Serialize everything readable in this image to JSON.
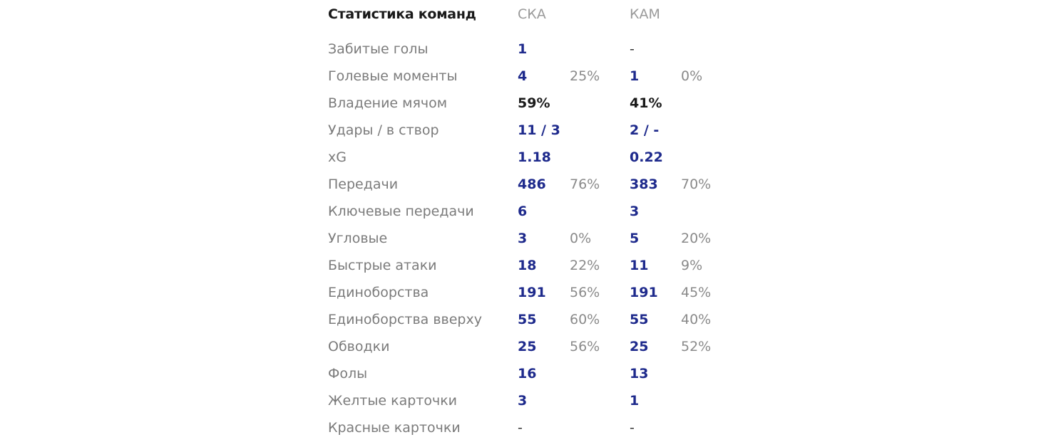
{
  "header": {
    "title": "Статистика команд",
    "team1": "СКА",
    "team2": "КАМ"
  },
  "rows": [
    {
      "label": "Забитые голы",
      "v1": "1",
      "p1": "",
      "v2": "-",
      "p2": ""
    },
    {
      "label": "Голевые моменты",
      "v1": "4",
      "p1": "25%",
      "v2": "1",
      "p2": "0%"
    },
    {
      "label": "Владение мячом",
      "v1": "59%",
      "p1": "",
      "v2": "41%",
      "p2": ""
    },
    {
      "label": "Удары / в створ",
      "v1": "11 / 3",
      "p1": "",
      "v2": "2 / -",
      "p2": ""
    },
    {
      "label": "xG",
      "v1": "1.18",
      "p1": "",
      "v2": "0.22",
      "p2": ""
    },
    {
      "label": "Передачи",
      "v1": "486",
      "p1": "76%",
      "v2": "383",
      "p2": "70%"
    },
    {
      "label": "Ключевые передачи",
      "v1": "6",
      "p1": "",
      "v2": "3",
      "p2": ""
    },
    {
      "label": "Угловые",
      "v1": "3",
      "p1": "0%",
      "v2": "5",
      "p2": "20%"
    },
    {
      "label": "Быстрые атаки",
      "v1": "18",
      "p1": "22%",
      "v2": "11",
      "p2": "9%"
    },
    {
      "label": "Единоборства",
      "v1": "191",
      "p1": "56%",
      "v2": "191",
      "p2": "45%"
    },
    {
      "label": "Единоборства вверху",
      "v1": "55",
      "p1": "60%",
      "v2": "55",
      "p2": "40%"
    },
    {
      "label": "Обводки",
      "v1": "25",
      "p1": "56%",
      "v2": "25",
      "p2": "52%"
    },
    {
      "label": "Фолы",
      "v1": "16",
      "p1": "",
      "v2": "13",
      "p2": ""
    },
    {
      "label": "Желтые карточки",
      "v1": "3",
      "p1": "",
      "v2": "1",
      "p2": ""
    },
    {
      "label": "Красные карточки",
      "v1": "-",
      "p1": "",
      "v2": "-",
      "p2": ""
    }
  ],
  "colors": {
    "value": "#1e2a8c",
    "label": "#7b7b7b",
    "percent": "#8a8a8a",
    "heading": "#1a1a1a"
  }
}
